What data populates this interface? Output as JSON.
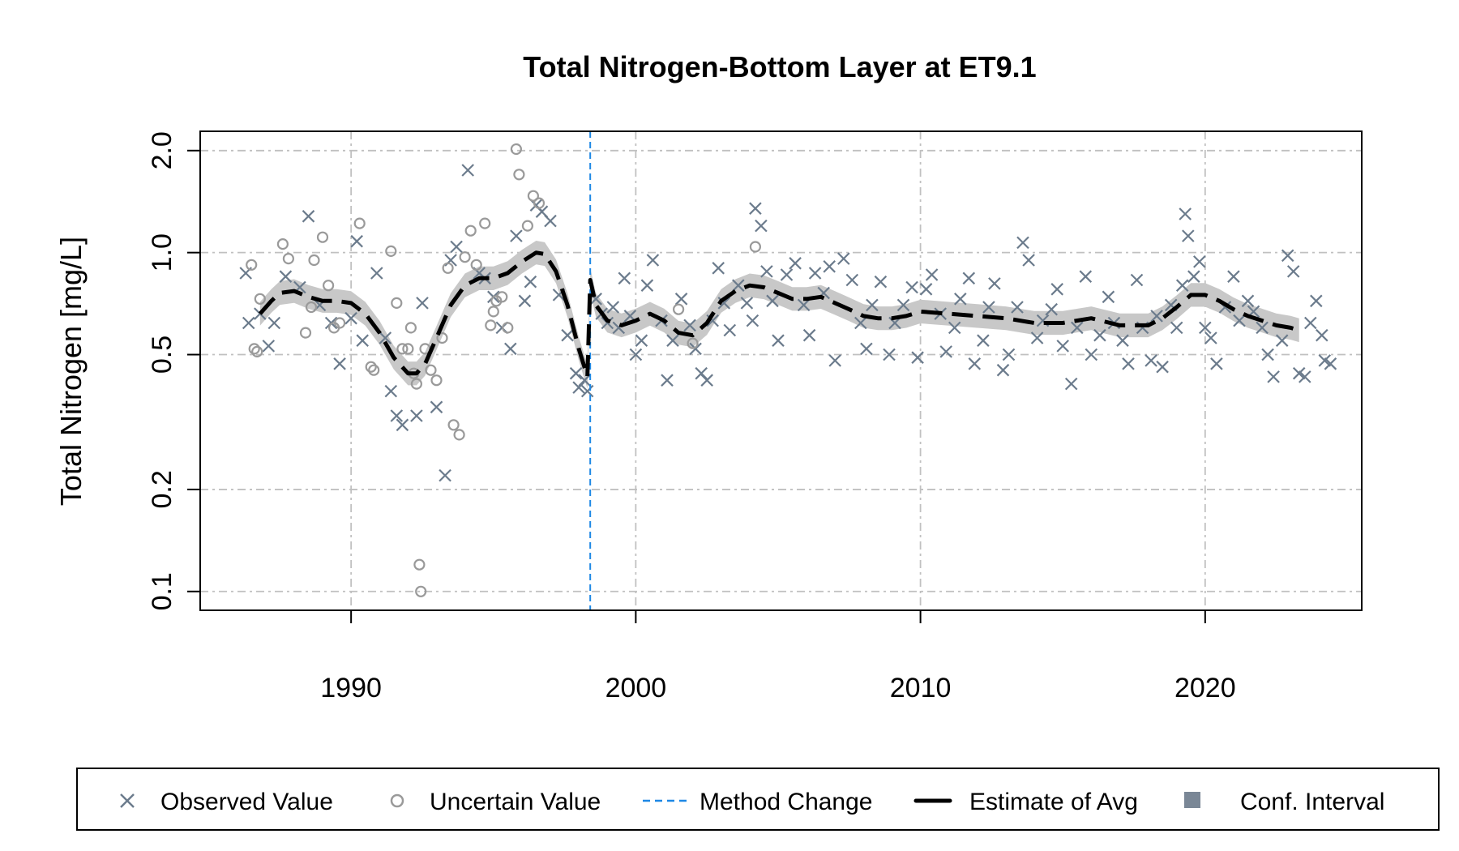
{
  "chart_data": {
    "type": "scatter",
    "title": "Total Nitrogen-Bottom Layer at ET9.1",
    "xlabel": "",
    "ylabel": "Total Nitrogen [mg/L]",
    "y_scale": "log",
    "xlim": [
      1984.7,
      2025.5
    ],
    "ylim": [
      0.088,
      2.28
    ],
    "x_ticks": [
      1990,
      2000,
      2010,
      2020
    ],
    "x_tick_labels": [
      "1990",
      "2000",
      "2010",
      "2020"
    ],
    "y_ticks": [
      0.1,
      0.2,
      0.5,
      1.0,
      2.0
    ],
    "y_tick_labels": [
      "0.1",
      "0.2",
      "0.5",
      "1.0",
      "2.0"
    ],
    "grid": true,
    "method_change_x": 1998.4,
    "legend": {
      "placement": "bottom",
      "entries": [
        "Observed Value",
        "Uncertain Value",
        "Method Change",
        "Estimate of Avg",
        "Conf. Interval"
      ]
    },
    "colors": {
      "observed": "#6b7b8c",
      "uncertain": "#9a9a9a",
      "method_change": "#1e88e5",
      "estimate": "#000000",
      "conf_interval": "#c8c8c8",
      "legend_conf_swatch": "#7a8796",
      "grid": "#c0c0c0"
    },
    "series": [
      {
        "name": "Observed Value",
        "marker": "x",
        "points": [
          [
            1986.3,
            0.87
          ],
          [
            1986.4,
            0.62
          ],
          [
            1986.8,
            0.66
          ],
          [
            1987.1,
            0.53
          ],
          [
            1987.3,
            0.62
          ],
          [
            1987.7,
            0.85
          ],
          [
            1988.2,
            0.79
          ],
          [
            1988.5,
            1.28
          ],
          [
            1988.9,
            0.7
          ],
          [
            1989.3,
            0.62
          ],
          [
            1989.6,
            0.47
          ],
          [
            1990.0,
            0.64
          ],
          [
            1990.2,
            1.08
          ],
          [
            1990.4,
            0.55
          ],
          [
            1990.9,
            0.87
          ],
          [
            1991.2,
            0.56
          ],
          [
            1991.4,
            0.39
          ],
          [
            1991.6,
            0.33
          ],
          [
            1991.8,
            0.31
          ],
          [
            1992.3,
            0.33
          ],
          [
            1992.5,
            0.71
          ],
          [
            1993.0,
            0.35
          ],
          [
            1993.3,
            0.22
          ],
          [
            1993.5,
            0.95
          ],
          [
            1993.7,
            1.04
          ],
          [
            1994.1,
            1.75
          ],
          [
            1994.5,
            0.87
          ],
          [
            1994.7,
            0.84
          ],
          [
            1995.0,
            0.74
          ],
          [
            1995.3,
            0.6
          ],
          [
            1995.6,
            0.52
          ],
          [
            1995.8,
            1.12
          ],
          [
            1996.1,
            0.72
          ],
          [
            1996.3,
            0.82
          ],
          [
            1996.5,
            1.38
          ],
          [
            1996.7,
            1.32
          ],
          [
            1997.0,
            1.24
          ],
          [
            1997.3,
            0.75
          ],
          [
            1997.6,
            0.57
          ],
          [
            1997.9,
            0.44
          ],
          [
            1998.0,
            0.4
          ],
          [
            1998.2,
            0.42
          ],
          [
            1998.3,
            0.39
          ],
          [
            1998.6,
            0.73
          ],
          [
            1998.8,
            0.66
          ],
          [
            1999.0,
            0.62
          ],
          [
            1999.2,
            0.69
          ],
          [
            1999.4,
            0.6
          ],
          [
            1999.6,
            0.84
          ],
          [
            1999.8,
            0.65
          ],
          [
            2000.0,
            0.5
          ],
          [
            2000.2,
            0.55
          ],
          [
            2000.4,
            0.8
          ],
          [
            2000.6,
            0.95
          ],
          [
            2000.9,
            0.63
          ],
          [
            2001.1,
            0.42
          ],
          [
            2001.3,
            0.55
          ],
          [
            2001.6,
            0.73
          ],
          [
            2001.9,
            0.61
          ],
          [
            2002.1,
            0.52
          ],
          [
            2002.3,
            0.44
          ],
          [
            2002.5,
            0.42
          ],
          [
            2002.7,
            0.63
          ],
          [
            2002.9,
            0.9
          ],
          [
            2003.1,
            0.71
          ],
          [
            2003.3,
            0.59
          ],
          [
            2003.6,
            0.8
          ],
          [
            2003.9,
            0.71
          ],
          [
            2004.1,
            0.63
          ],
          [
            2004.2,
            1.35
          ],
          [
            2004.4,
            1.2
          ],
          [
            2004.6,
            0.88
          ],
          [
            2004.8,
            0.72
          ],
          [
            2005.0,
            0.55
          ],
          [
            2005.3,
            0.86
          ],
          [
            2005.6,
            0.93
          ],
          [
            2005.9,
            0.7
          ],
          [
            2006.1,
            0.57
          ],
          [
            2006.3,
            0.87
          ],
          [
            2006.6,
            0.76
          ],
          [
            2006.8,
            0.91
          ],
          [
            2007.0,
            0.48
          ],
          [
            2007.3,
            0.96
          ],
          [
            2007.6,
            0.83
          ],
          [
            2007.9,
            0.62
          ],
          [
            2008.1,
            0.52
          ],
          [
            2008.3,
            0.7
          ],
          [
            2008.6,
            0.82
          ],
          [
            2008.9,
            0.5
          ],
          [
            2009.1,
            0.62
          ],
          [
            2009.4,
            0.7
          ],
          [
            2009.7,
            0.79
          ],
          [
            2009.9,
            0.49
          ],
          [
            2010.2,
            0.78
          ],
          [
            2010.4,
            0.86
          ],
          [
            2010.7,
            0.66
          ],
          [
            2010.9,
            0.51
          ],
          [
            2011.2,
            0.6
          ],
          [
            2011.4,
            0.73
          ],
          [
            2011.7,
            0.84
          ],
          [
            2011.9,
            0.47
          ],
          [
            2012.2,
            0.55
          ],
          [
            2012.4,
            0.69
          ],
          [
            2012.6,
            0.81
          ],
          [
            2012.9,
            0.45
          ],
          [
            2013.1,
            0.5
          ],
          [
            2013.4,
            0.69
          ],
          [
            2013.6,
            1.07
          ],
          [
            2013.8,
            0.95
          ],
          [
            2014.1,
            0.56
          ],
          [
            2014.3,
            0.63
          ],
          [
            2014.6,
            0.68
          ],
          [
            2014.8,
            0.78
          ],
          [
            2015.0,
            0.53
          ],
          [
            2015.3,
            0.41
          ],
          [
            2015.5,
            0.6
          ],
          [
            2015.8,
            0.85
          ],
          [
            2016.0,
            0.5
          ],
          [
            2016.3,
            0.57
          ],
          [
            2016.6,
            0.74
          ],
          [
            2016.8,
            0.62
          ],
          [
            2017.1,
            0.55
          ],
          [
            2017.3,
            0.47
          ],
          [
            2017.6,
            0.83
          ],
          [
            2017.8,
            0.6
          ],
          [
            2018.1,
            0.48
          ],
          [
            2018.3,
            0.65
          ],
          [
            2018.5,
            0.46
          ],
          [
            2018.8,
            0.7
          ],
          [
            2019.0,
            0.6
          ],
          [
            2019.2,
            0.8
          ],
          [
            2019.3,
            1.3
          ],
          [
            2019.4,
            1.12
          ],
          [
            2019.6,
            0.85
          ],
          [
            2019.8,
            0.94
          ],
          [
            2020.0,
            0.6
          ],
          [
            2020.2,
            0.56
          ],
          [
            2020.4,
            0.47
          ],
          [
            2020.7,
            0.69
          ],
          [
            2021.0,
            0.85
          ],
          [
            2021.2,
            0.63
          ],
          [
            2021.5,
            0.72
          ],
          [
            2021.7,
            0.67
          ],
          [
            2022.0,
            0.6
          ],
          [
            2022.2,
            0.5
          ],
          [
            2022.4,
            0.43
          ],
          [
            2022.7,
            0.55
          ],
          [
            2022.9,
            0.98
          ],
          [
            2023.1,
            0.88
          ],
          [
            2023.3,
            0.44
          ],
          [
            2023.5,
            0.43
          ],
          [
            2023.7,
            0.62
          ],
          [
            2023.9,
            0.72
          ],
          [
            2024.1,
            0.57
          ],
          [
            2024.2,
            0.48
          ],
          [
            2024.4,
            0.47
          ]
        ]
      },
      {
        "name": "Uncertain Value",
        "marker": "o",
        "points": [
          [
            1986.5,
            0.92
          ],
          [
            1986.6,
            0.52
          ],
          [
            1986.7,
            0.51
          ],
          [
            1986.8,
            0.73
          ],
          [
            1987.6,
            1.06
          ],
          [
            1987.8,
            0.96
          ],
          [
            1988.4,
            0.58
          ],
          [
            1988.6,
            0.69
          ],
          [
            1988.7,
            0.95
          ],
          [
            1989.0,
            1.11
          ],
          [
            1989.2,
            0.8
          ],
          [
            1989.4,
            0.6
          ],
          [
            1989.6,
            0.62
          ],
          [
            1990.3,
            1.22
          ],
          [
            1990.7,
            0.46
          ],
          [
            1990.8,
            0.45
          ],
          [
            1991.4,
            1.01
          ],
          [
            1991.6,
            0.71
          ],
          [
            1991.8,
            0.52
          ],
          [
            1992.0,
            0.52
          ],
          [
            1992.1,
            0.6
          ],
          [
            1992.2,
            0.44
          ],
          [
            1992.3,
            0.41
          ],
          [
            1992.4,
            0.12
          ],
          [
            1992.45,
            0.1
          ],
          [
            1992.6,
            0.52
          ],
          [
            1992.8,
            0.45
          ],
          [
            1993.0,
            0.42
          ],
          [
            1993.2,
            0.56
          ],
          [
            1993.4,
            0.9
          ],
          [
            1993.6,
            0.31
          ],
          [
            1993.8,
            0.29
          ],
          [
            1994.0,
            0.97
          ],
          [
            1994.2,
            1.16
          ],
          [
            1994.4,
            0.92
          ],
          [
            1994.7,
            1.22
          ],
          [
            1994.9,
            0.61
          ],
          [
            1995.0,
            0.67
          ],
          [
            1995.1,
            0.72
          ],
          [
            1995.3,
            0.74
          ],
          [
            1995.5,
            0.6
          ],
          [
            1995.8,
            2.02
          ],
          [
            1995.9,
            1.7
          ],
          [
            1996.2,
            1.2
          ],
          [
            1996.4,
            1.47
          ],
          [
            1996.6,
            1.4
          ],
          [
            2001.5,
            0.68
          ],
          [
            2002.0,
            0.54
          ],
          [
            2004.2,
            1.04
          ]
        ]
      }
    ],
    "estimate_of_avg": {
      "name": "Estimate of Avg",
      "x": [
        1986.8,
        1987.2,
        1987.5,
        1988.0,
        1988.5,
        1989.0,
        1989.5,
        1990.0,
        1990.5,
        1991.0,
        1991.5,
        1992.0,
        1992.3,
        1992.6,
        1993.0,
        1993.5,
        1994.0,
        1994.5,
        1995.0,
        1995.5,
        1996.0,
        1996.5,
        1996.8,
        1997.2,
        1997.6,
        1998.0,
        1998.3,
        1998.4,
        1998.6,
        1999.0,
        1999.5,
        2000.0,
        2000.5,
        2001.0,
        2001.5,
        2002.0,
        2002.5,
        2003.0,
        2003.5,
        2004.0,
        2004.5,
        2005.0,
        2005.5,
        2006.0,
        2006.5,
        2007.0,
        2007.5,
        2008.0,
        2008.5,
        2009.0,
        2009.5,
        2010.0,
        2011.0,
        2012.0,
        2013.0,
        2014.0,
        2015.0,
        2016.0,
        2017.0,
        2018.0,
        2018.5,
        2019.0,
        2019.5,
        2020.0,
        2020.5,
        2021.0,
        2021.5,
        2022.0,
        2022.5,
        2023.0,
        2023.3
      ],
      "y": [
        0.66,
        0.72,
        0.76,
        0.77,
        0.74,
        0.72,
        0.72,
        0.71,
        0.66,
        0.58,
        0.49,
        0.44,
        0.44,
        0.47,
        0.56,
        0.7,
        0.8,
        0.84,
        0.84,
        0.87,
        0.94,
        1.0,
        0.99,
        0.88,
        0.7,
        0.52,
        0.43,
        0.83,
        0.7,
        0.63,
        0.61,
        0.63,
        0.66,
        0.63,
        0.58,
        0.57,
        0.62,
        0.72,
        0.77,
        0.8,
        0.79,
        0.76,
        0.73,
        0.73,
        0.74,
        0.71,
        0.68,
        0.65,
        0.64,
        0.64,
        0.65,
        0.67,
        0.66,
        0.65,
        0.64,
        0.62,
        0.62,
        0.64,
        0.61,
        0.61,
        0.64,
        0.69,
        0.75,
        0.75,
        0.72,
        0.68,
        0.65,
        0.63,
        0.61,
        0.6,
        0.59
      ]
    },
    "conf_interval": {
      "name": "Conf. Interval",
      "half_width_log10": 0.035
    }
  }
}
